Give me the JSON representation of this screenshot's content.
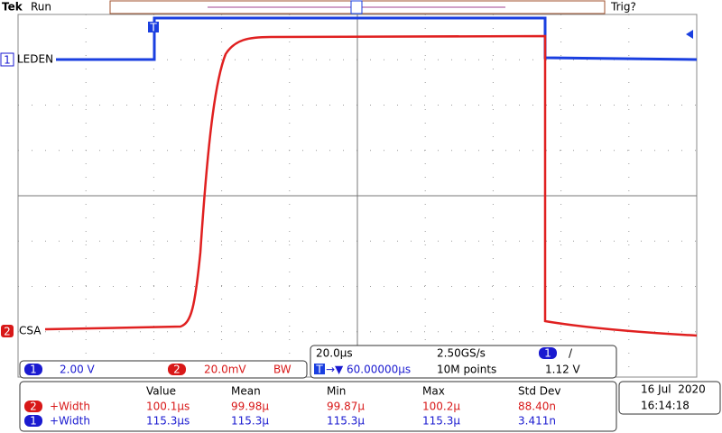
{
  "header": {
    "brand": "Tek",
    "status": "Run",
    "trigger_status": "Trig?"
  },
  "channels": [
    {
      "number": "1",
      "label": "LEDEN"
    },
    {
      "number": "2",
      "label": "CSA"
    }
  ],
  "vertical": {
    "ch1": {
      "number": "1",
      "scale": "2.00 V"
    },
    "ch2": {
      "number": "2",
      "scale": "20.0mV",
      "bandwidth": "BW"
    }
  },
  "horizontal": {
    "scale": "20.0µs",
    "sample_rate": "2.50GS/s",
    "trigger_channel": "1",
    "trigger_slope": "/",
    "delay": "60.00000µs",
    "record_length": "10M points",
    "trigger_level": "1.12 V"
  },
  "table": {
    "headers": [
      "Value",
      "Mean",
      "Min",
      "Max",
      "Std Dev"
    ],
    "rows": [
      {
        "channel": "2",
        "measurement": "+Width",
        "cells": [
          "100.1µs",
          "99.98µ",
          "99.87µ",
          "100.2µ",
          "88.40n"
        ]
      },
      {
        "channel": "1",
        "measurement": "+Width",
        "cells": [
          "115.3µs",
          "115.3µ",
          "115.3µ",
          "115.3µ",
          "3.411n"
        ]
      }
    ]
  },
  "timestamp": {
    "date": "16 Jul  2020",
    "time": "16:14:18"
  }
}
